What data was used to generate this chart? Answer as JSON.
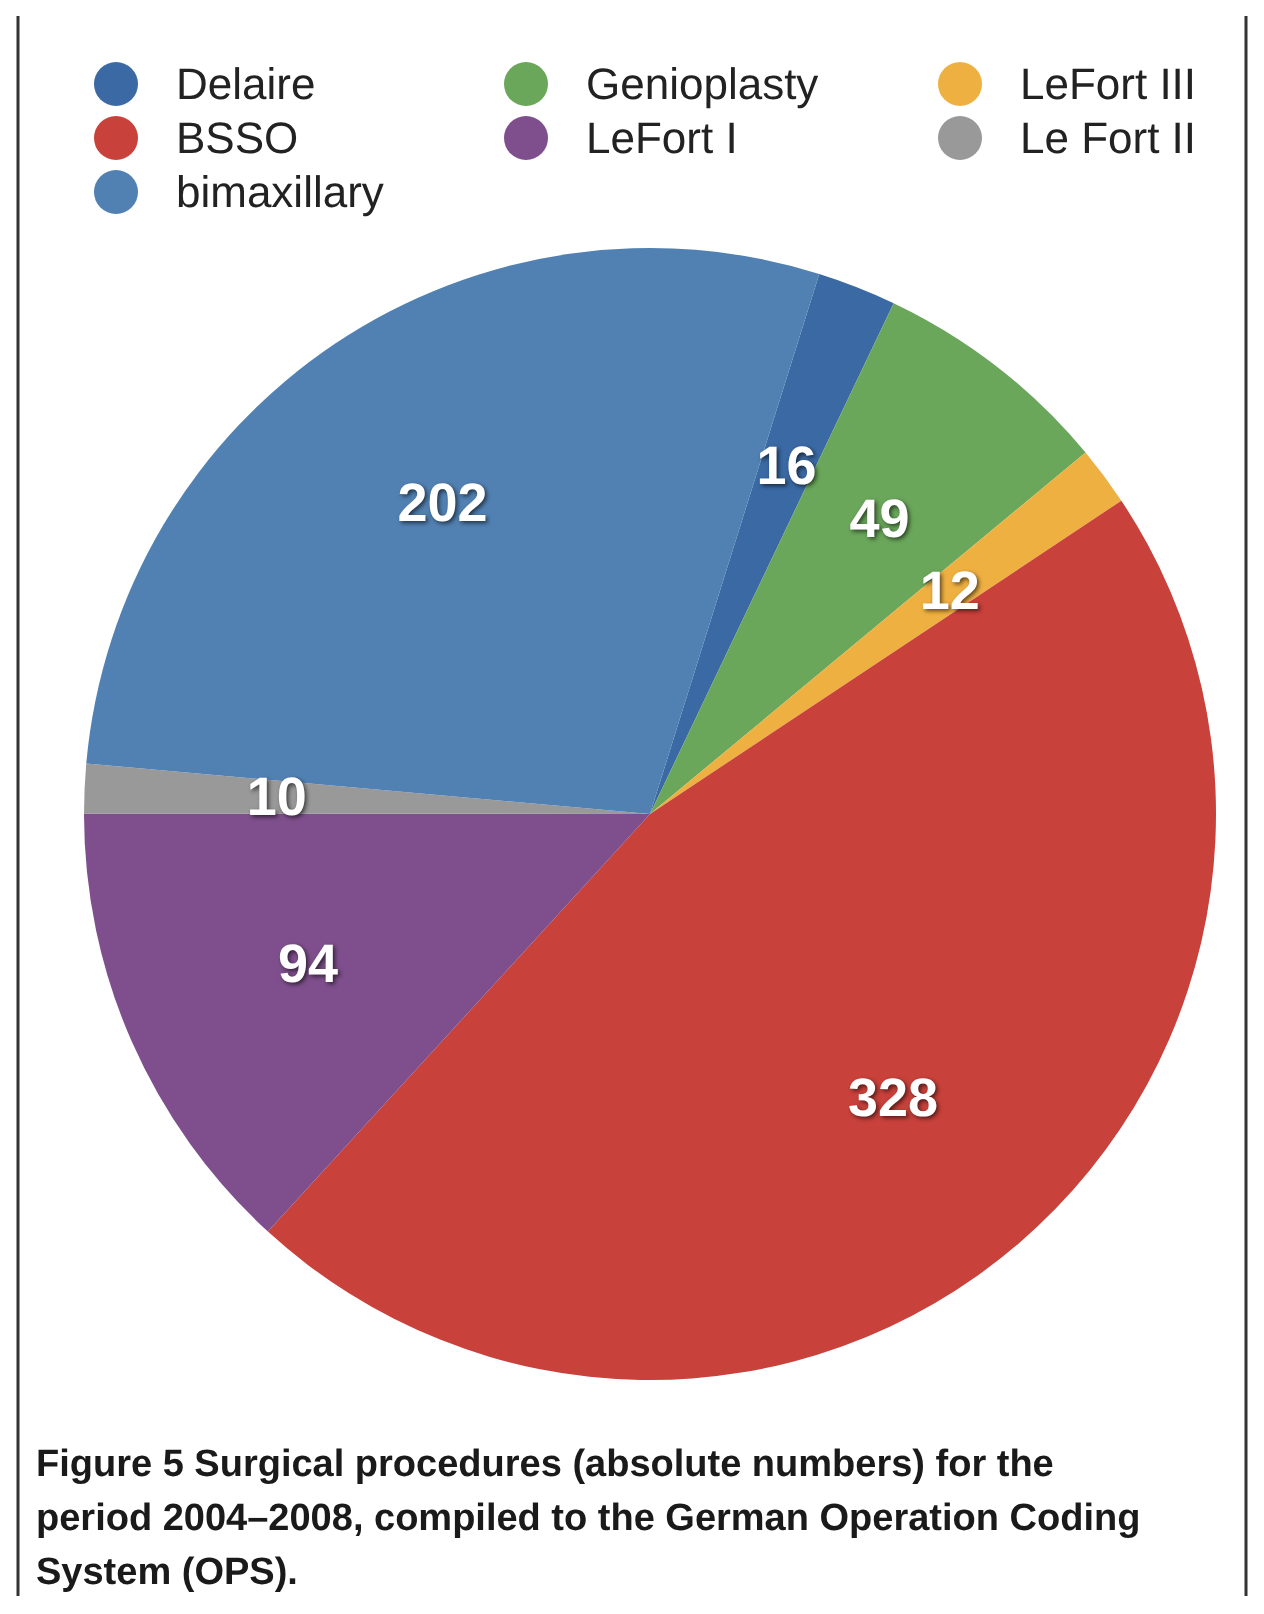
{
  "chart_data": {
    "type": "pie",
    "categories": [
      "Delaire",
      "Genioplasty",
      "LeFort III",
      "BSSO",
      "LeFort I",
      "Le Fort II",
      "bimaxillary"
    ],
    "values": [
      16,
      49,
      12,
      328,
      94,
      10,
      202
    ],
    "colors": [
      "#3a69a3",
      "#6aa75a",
      "#efb042",
      "#c9413b",
      "#7e4f8c",
      "#999999",
      "#5180b2"
    ],
    "data_labels": true,
    "legend": "top",
    "annotations": [
      "Figure 5 Surgical procedures (absolute numbers) for the period 2004–2008, compiled to the German Operation Coding System (OPS)."
    ]
  }
}
